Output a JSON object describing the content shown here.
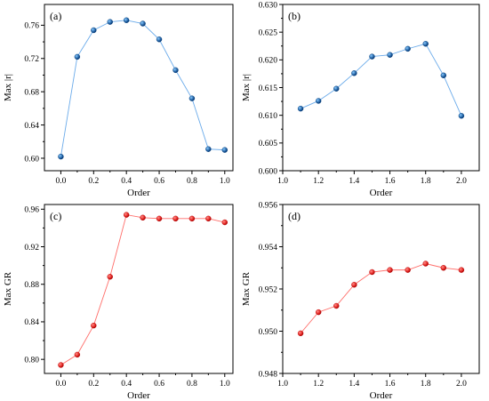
{
  "chart_data": [
    {
      "type": "line",
      "panel_label": "(a)",
      "xlabel": "Order",
      "ylabel": "Max |r|",
      "xlim": [
        -0.1,
        1.05
      ],
      "ylim": [
        0.585,
        0.785
      ],
      "x_ticks": [
        0.0,
        0.2,
        0.4,
        0.6,
        0.8,
        1.0
      ],
      "x_tick_labels": [
        "0.0",
        "0.2",
        "0.4",
        "0.6",
        "0.8",
        "1.0"
      ],
      "y_ticks": [
        0.6,
        0.64,
        0.68,
        0.72,
        0.76
      ],
      "y_tick_labels": [
        "0.60",
        "0.64",
        "0.68",
        "0.72",
        "0.76"
      ],
      "color": "#2f6fae",
      "series": [
        {
          "x": [
            0.0,
            0.1,
            0.2,
            0.3,
            0.4,
            0.5,
            0.6,
            0.7,
            0.8,
            0.9,
            1.0
          ],
          "values": [
            0.602,
            0.722,
            0.754,
            0.764,
            0.766,
            0.762,
            0.743,
            0.706,
            0.672,
            0.611,
            0.61
          ]
        }
      ]
    },
    {
      "type": "line",
      "panel_label": "(b)",
      "xlabel": "Order",
      "ylabel": "Max |r|",
      "xlim": [
        1.0,
        2.1
      ],
      "ylim": [
        0.6,
        0.63
      ],
      "x_ticks": [
        1.0,
        1.2,
        1.4,
        1.6,
        1.8,
        2.0
      ],
      "x_tick_labels": [
        "1.0",
        "1.2",
        "1.4",
        "1.6",
        "1.8",
        "2.0"
      ],
      "y_ticks": [
        0.6,
        0.605,
        0.61,
        0.615,
        0.62,
        0.625,
        0.63
      ],
      "y_tick_labels": [
        "0.600",
        "0.605",
        "0.610",
        "0.615",
        "0.620",
        "0.625",
        "0.630"
      ],
      "color": "#2f6fae",
      "series": [
        {
          "x": [
            1.1,
            1.2,
            1.3,
            1.4,
            1.5,
            1.6,
            1.7,
            1.8,
            1.9,
            2.0
          ],
          "values": [
            0.6112,
            0.6126,
            0.6148,
            0.6176,
            0.6206,
            0.6209,
            0.622,
            0.6229,
            0.6172,
            0.6099
          ]
        }
      ]
    },
    {
      "type": "line",
      "panel_label": "(c)",
      "xlabel": "Order",
      "ylabel": "Max GR",
      "xlim": [
        -0.1,
        1.05
      ],
      "ylim": [
        0.785,
        0.965
      ],
      "x_ticks": [
        0.0,
        0.2,
        0.4,
        0.6,
        0.8,
        1.0
      ],
      "x_tick_labels": [
        "0.0",
        "0.2",
        "0.4",
        "0.6",
        "0.8",
        "1.0"
      ],
      "y_ticks": [
        0.8,
        0.84,
        0.88,
        0.92,
        0.96
      ],
      "y_tick_labels": [
        "0.80",
        "0.84",
        "0.88",
        "0.92",
        "0.96"
      ],
      "color": "#e8322e",
      "series": [
        {
          "x": [
            0.0,
            0.1,
            0.2,
            0.3,
            0.4,
            0.5,
            0.6,
            0.7,
            0.8,
            0.9,
            1.0
          ],
          "values": [
            0.794,
            0.805,
            0.836,
            0.888,
            0.954,
            0.951,
            0.95,
            0.95,
            0.95,
            0.95,
            0.946
          ]
        }
      ]
    },
    {
      "type": "line",
      "panel_label": "(d)",
      "xlabel": "Order",
      "ylabel": "Max GR",
      "xlim": [
        1.0,
        2.1
      ],
      "ylim": [
        0.948,
        0.956
      ],
      "x_ticks": [
        1.0,
        1.2,
        1.4,
        1.6,
        1.8,
        2.0
      ],
      "x_tick_labels": [
        "1.0",
        "1.2",
        "1.4",
        "1.6",
        "1.8",
        "2.0"
      ],
      "y_ticks": [
        0.948,
        0.95,
        0.952,
        0.954,
        0.956
      ],
      "y_tick_labels": [
        "0.948",
        "0.950",
        "0.952",
        "0.954",
        "0.956"
      ],
      "color": "#e8322e",
      "series": [
        {
          "x": [
            1.1,
            1.2,
            1.3,
            1.4,
            1.5,
            1.6,
            1.7,
            1.8,
            1.9,
            2.0
          ],
          "values": [
            0.9499,
            0.9509,
            0.9512,
            0.9522,
            0.9528,
            0.9529,
            0.9529,
            0.9532,
            0.953,
            0.9529
          ]
        }
      ]
    }
  ]
}
